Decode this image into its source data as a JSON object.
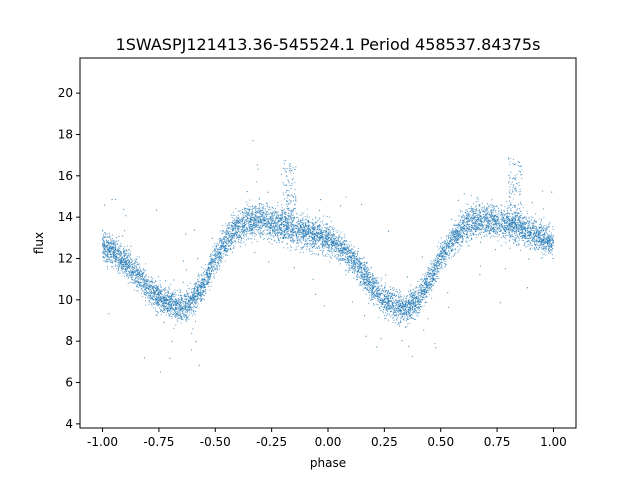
{
  "chart_data": {
    "type": "scatter",
    "title": "1SWASPJ121413.36-545524.1 Period 458537.84375s",
    "xlabel": "phase",
    "ylabel": "flux",
    "xlim": [
      -1.1,
      1.1
    ],
    "ylim": [
      3.8,
      21.7
    ],
    "xticks": [
      "-1.00",
      "-0.75",
      "-0.50",
      "-0.25",
      "0.00",
      "0.25",
      "0.50",
      "0.75",
      "1.00"
    ],
    "yticks": [
      "4",
      "6",
      "8",
      "10",
      "12",
      "14",
      "16",
      "18",
      "20"
    ],
    "grid": false,
    "marker_color": "#1f77b4",
    "series": [
      {
        "x": [
          -1.0,
          -0.95,
          -0.9,
          -0.85,
          -0.8,
          -0.75,
          -0.7,
          -0.65,
          -0.6,
          -0.55,
          -0.5,
          -0.45,
          -0.4,
          -0.35,
          -0.3,
          -0.25,
          -0.2,
          -0.15,
          -0.1,
          -0.05,
          0.0,
          0.05,
          0.1,
          0.15,
          0.2,
          0.25,
          0.3,
          0.35,
          0.4,
          0.45,
          0.5,
          0.55,
          0.6,
          0.65,
          0.7,
          0.75,
          0.8,
          0.85,
          0.9,
          0.95,
          1.0
        ],
        "y": [
          12.7,
          12.3,
          11.8,
          11.3,
          10.6,
          10.1,
          9.8,
          9.6,
          10.0,
          10.8,
          12.0,
          12.9,
          13.5,
          13.8,
          13.9,
          13.7,
          13.6,
          13.4,
          13.3,
          13.1,
          12.9,
          12.6,
          12.1,
          11.4,
          10.6,
          10.0,
          9.7,
          9.6,
          10.0,
          10.9,
          12.1,
          12.9,
          13.5,
          13.8,
          13.9,
          13.8,
          13.7,
          13.5,
          13.3,
          13.0,
          12.8
        ]
      }
    ]
  }
}
